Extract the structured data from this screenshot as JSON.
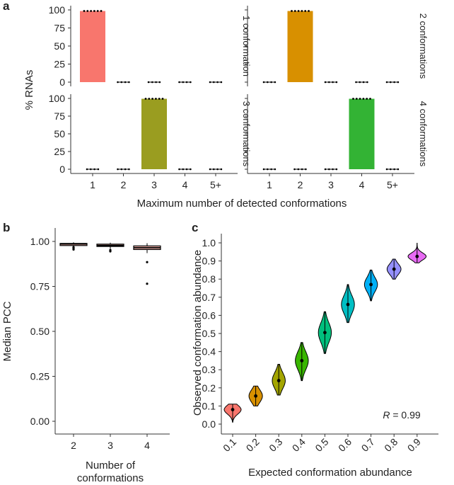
{
  "panel_labels": {
    "a": "a",
    "b": "b",
    "c": "c"
  },
  "colors": {
    "c1": "#f8766d",
    "c2": "#d89000",
    "c3": "#a3a500",
    "c4": "#39b600",
    "c5": "#00bf7d",
    "c6": "#00bfc4",
    "c7": "#00b0f6",
    "c8": "#9590ff",
    "c9": "#e76bf3",
    "bar1": "#f8766d",
    "bar2": "#d89000",
    "bar3": "#9a9d20",
    "bar4": "#33b334"
  },
  "chart_data": [
    {
      "id": "a",
      "type": "bar",
      "layout": "facet-2x2",
      "ylabel": "% RNAs",
      "xlabel": "Maximum number of detected conformations",
      "categories": [
        "1",
        "2",
        "3",
        "4",
        "5+"
      ],
      "yticks": [
        "0",
        "25",
        "50",
        "75",
        "100"
      ],
      "ylim": [
        0,
        100
      ],
      "facets": [
        {
          "strip": "1 conformation",
          "values": [
            98.5,
            0,
            0,
            0,
            0
          ],
          "highlight": 0
        },
        {
          "strip": "2 conformations",
          "values": [
            0,
            98.5,
            0,
            0,
            0
          ],
          "highlight": 1
        },
        {
          "strip": "3 conformations",
          "values": [
            0,
            0,
            99.5,
            0,
            0
          ],
          "highlight": 2
        },
        {
          "strip": "4 conformations",
          "values": [
            0,
            0,
            0,
            99.5,
            0
          ],
          "highlight": 3
        }
      ]
    },
    {
      "id": "b",
      "type": "box",
      "ylabel": "Median PCC",
      "xlabel_line1": "Number of",
      "xlabel_line2": "conformations",
      "categories": [
        "2",
        "3",
        "4"
      ],
      "yticks": [
        "0.00",
        "0.25",
        "0.50",
        "0.75",
        "1.00"
      ],
      "ylim": [
        0,
        1.0
      ],
      "boxes": [
        {
          "q1": 0.983,
          "median": 0.986,
          "q3": 0.989,
          "min": 0.972,
          "max": 0.995,
          "outliers": [
            0.955,
            0.962,
            0.968
          ]
        },
        {
          "q1": 0.972,
          "median": 0.978,
          "q3": 0.985,
          "min": 0.958,
          "max": 0.993,
          "outliers": [
            0.945,
            0.952
          ]
        },
        {
          "q1": 0.955,
          "median": 0.965,
          "q3": 0.975,
          "min": 0.935,
          "max": 0.99,
          "outliers": [
            0.885,
            0.765
          ]
        }
      ]
    },
    {
      "id": "c",
      "type": "violin",
      "ylabel": "Observed conformation abundance",
      "xlabel": "Expected conformation abundance",
      "categories": [
        "0.1",
        "0.2",
        "0.3",
        "0.4",
        "0.5",
        "0.6",
        "0.7",
        "0.8",
        "0.9"
      ],
      "yticks": [
        "0.0",
        "0.1",
        "0.2",
        "0.3",
        "0.4",
        "0.5",
        "0.6",
        "0.7",
        "0.8",
        "0.9",
        "1.0"
      ],
      "ylim": [
        0,
        1.0
      ],
      "annotation": "= 0.99",
      "annotation_var": "R",
      "violins": [
        {
          "median": 0.08,
          "min": 0.01,
          "max": 0.11,
          "width": 0.55,
          "spread": 0.025
        },
        {
          "median": 0.155,
          "min": 0.1,
          "max": 0.21,
          "width": 0.4,
          "spread": 0.035
        },
        {
          "median": 0.24,
          "min": 0.16,
          "max": 0.33,
          "width": 0.38,
          "spread": 0.045
        },
        {
          "median": 0.35,
          "min": 0.24,
          "max": 0.45,
          "width": 0.38,
          "spread": 0.05
        },
        {
          "median": 0.505,
          "min": 0.39,
          "max": 0.62,
          "width": 0.38,
          "spread": 0.055
        },
        {
          "median": 0.66,
          "min": 0.56,
          "max": 0.77,
          "width": 0.38,
          "spread": 0.05
        },
        {
          "median": 0.77,
          "min": 0.68,
          "max": 0.85,
          "width": 0.38,
          "spread": 0.04
        },
        {
          "median": 0.855,
          "min": 0.8,
          "max": 0.91,
          "width": 0.42,
          "spread": 0.03
        },
        {
          "median": 0.925,
          "min": 0.89,
          "max": 1.0,
          "width": 0.6,
          "spread": 0.02
        }
      ]
    }
  ]
}
